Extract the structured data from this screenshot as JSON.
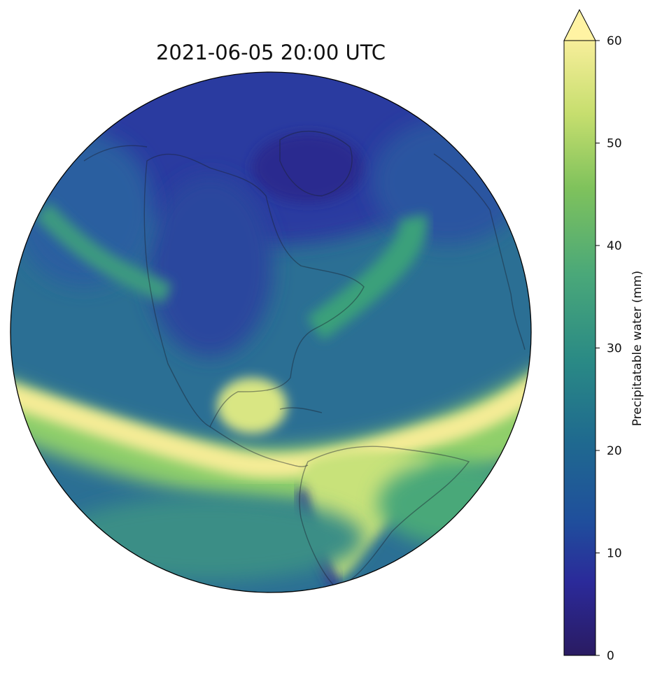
{
  "figure": {
    "title": "2021-06-05 20:00 UTC"
  },
  "colorbar": {
    "label": "Precipitatable water (mm)",
    "min": 0,
    "max": 60,
    "extend": "max",
    "ticks": [
      "0",
      "10",
      "20",
      "30",
      "40",
      "50",
      "60"
    ],
    "colormap": [
      "#2a1b62",
      "#2b2a9a",
      "#1f4f9c",
      "#1f6a8f",
      "#2a8a85",
      "#4aa879",
      "#7fc25c",
      "#c6de6e",
      "#f7ee9a",
      "#fff3a3"
    ]
  },
  "globe": {
    "projection": "orthographic",
    "features": [
      "coastlines"
    ]
  }
}
